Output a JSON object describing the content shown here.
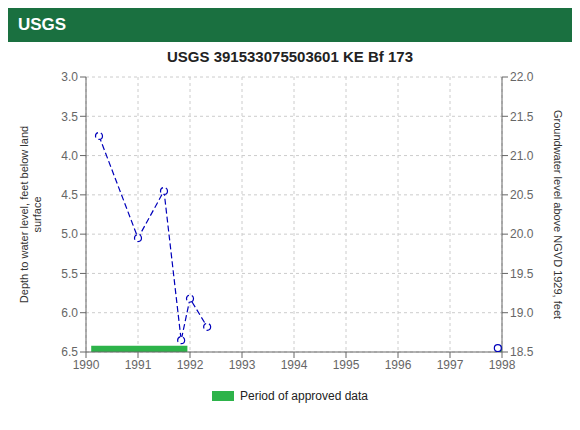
{
  "chart_data": {
    "type": "line",
    "title": "USGS 391533075503601 KE Bf 173",
    "header": "USGS",
    "ylabel": "Depth to water level, feet below land\nsurface",
    "y2label": "Groundwater level above NGVD 1929, feet",
    "xlim": [
      1990,
      1998
    ],
    "xticks": [
      1990,
      1991,
      1992,
      1993,
      1994,
      1995,
      1996,
      1997,
      1998
    ],
    "ylim": [
      6.5,
      3.0
    ],
    "yticks": [
      {
        "value": 3.0,
        "label": "3.0"
      },
      3.5,
      {
        "value": 4.0,
        "label": "4.0"
      },
      4.5,
      {
        "value": 5.0,
        "label": "5.0"
      },
      5.5,
      {
        "value": 6.0,
        "label": "6.0"
      },
      6.5
    ],
    "y2lim": [
      18.5,
      22.0
    ],
    "y2ticks": [
      {
        "value": 22.0,
        "label": "22.0"
      },
      21.5,
      {
        "value": 21.0,
        "label": "21.0"
      },
      20.5,
      {
        "value": 20.0,
        "label": "20.0"
      },
      19.5,
      {
        "value": 19.0,
        "label": "19.0"
      },
      18.5
    ],
    "grid": true,
    "series": [
      {
        "type": "line",
        "line_style": "dashed",
        "marker": "circle",
        "color": "#0000bb",
        "x": [
          1990.25,
          1991.0,
          1991.5,
          1991.83,
          1992.0,
          1992.33
        ],
        "values": [
          3.75,
          5.05,
          4.45,
          6.35,
          5.82,
          6.18
        ]
      },
      {
        "type": "scatter",
        "marker": "circle",
        "color": "#0000bb",
        "x": [
          1997.92
        ],
        "values": [
          6.45
        ]
      },
      {
        "type": "band",
        "name": "Period of approved data",
        "color": "#2db34a",
        "periods": [
          [
            1990.1,
            1991.95
          ],
          [
            1997.88,
            1998.0
          ]
        ],
        "band": [
          6.42,
          6.5
        ]
      }
    ]
  }
}
